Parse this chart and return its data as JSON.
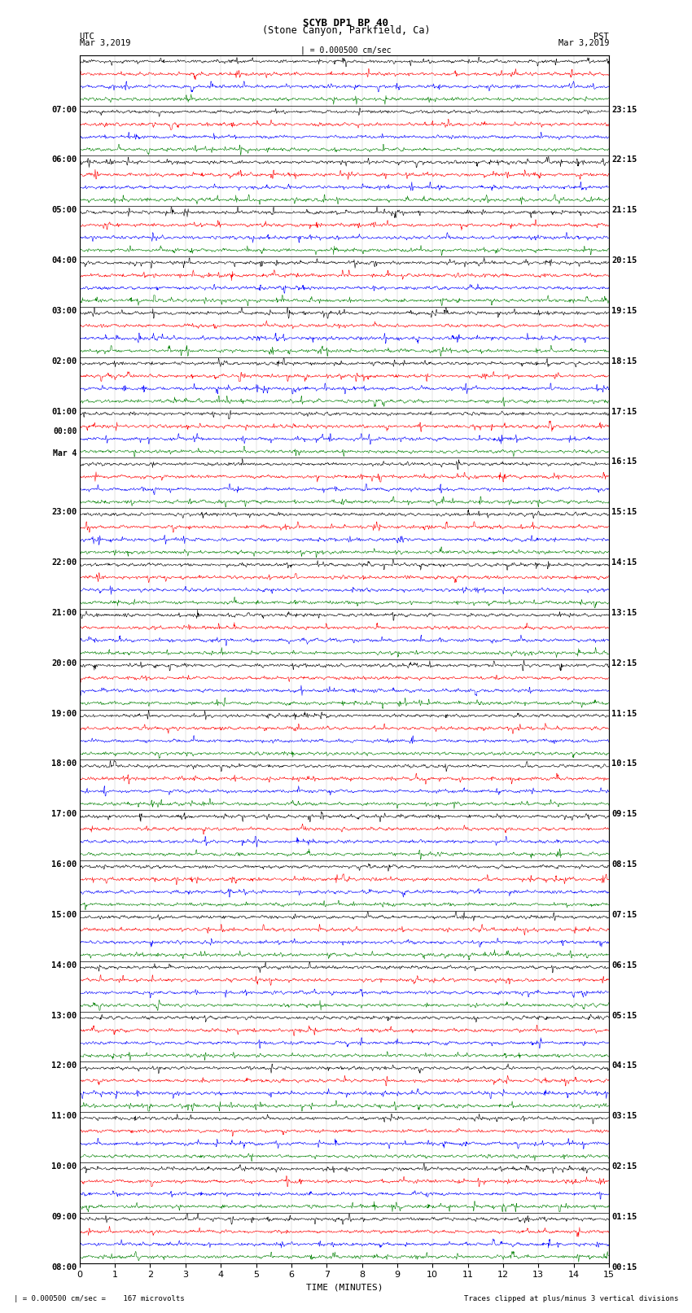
{
  "title_line1": "SCYB DP1 BP 40",
  "title_line2": "(Stone Canyon, Parkfield, Ca)",
  "scale_text": "| = 0.000500 cm/sec",
  "left_header": "UTC",
  "left_date": "Mar 3,2019",
  "right_header": "PST",
  "right_date": "Mar 3,2019",
  "bottom_label": "TIME (MINUTES)",
  "footer_left": "| = 0.000500 cm/sec =    167 microvolts",
  "footer_right": "Traces clipped at plus/minus 3 vertical divisions",
  "xlim": [
    0,
    15
  ],
  "xticks": [
    0,
    1,
    2,
    3,
    4,
    5,
    6,
    7,
    8,
    9,
    10,
    11,
    12,
    13,
    14,
    15
  ],
  "trace_colors": [
    "black",
    "red",
    "blue",
    "green"
  ],
  "background_color": "white",
  "left_times_utc": [
    "08:00",
    "09:00",
    "10:00",
    "11:00",
    "12:00",
    "13:00",
    "14:00",
    "15:00",
    "16:00",
    "17:00",
    "18:00",
    "19:00",
    "20:00",
    "21:00",
    "22:00",
    "23:00",
    "Mar 4\n00:00",
    "01:00",
    "02:00",
    "03:00",
    "04:00",
    "05:00",
    "06:00",
    "07:00"
  ],
  "right_times_pst": [
    "00:15",
    "01:15",
    "02:15",
    "03:15",
    "04:15",
    "05:15",
    "06:15",
    "07:15",
    "08:15",
    "09:15",
    "10:15",
    "11:15",
    "12:15",
    "13:15",
    "14:15",
    "15:15",
    "16:15",
    "17:15",
    "18:15",
    "19:15",
    "20:15",
    "21:15",
    "22:15",
    "23:15"
  ],
  "num_hours": 24,
  "traces_per_hour": 4,
  "sample_rate": 1800,
  "seed": 42
}
